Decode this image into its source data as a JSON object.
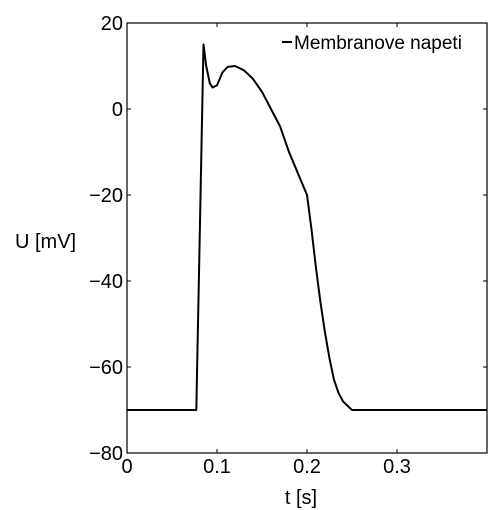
{
  "chart_data": {
    "type": "line",
    "xlabel": "t [s]",
    "ylabel": "U [mV]",
    "xlim": [
      0,
      0.4
    ],
    "ylim": [
      -80,
      20
    ],
    "xticks": [
      0,
      0.1,
      0.2,
      0.3
    ],
    "xtick_labels": [
      "0",
      "0.1",
      "0.2",
      "0.3"
    ],
    "yticks": [
      -80,
      -60,
      -40,
      -20,
      0,
      20
    ],
    "ytick_labels": [
      "−80",
      "−60",
      "−40",
      "−20",
      "0",
      "20"
    ],
    "grid": false,
    "legend": "top-right",
    "colors": {
      "line": "#000000",
      "axes": "#000000"
    },
    "series": [
      {
        "name": "Membranove napeti",
        "x": [
          0,
          0.077,
          0.085,
          0.088,
          0.092,
          0.095,
          0.1,
          0.106,
          0.112,
          0.12,
          0.13,
          0.14,
          0.15,
          0.16,
          0.17,
          0.18,
          0.19,
          0.2,
          0.205,
          0.21,
          0.215,
          0.22,
          0.225,
          0.23,
          0.235,
          0.24,
          0.245,
          0.25,
          0.255,
          0.3,
          0.4
        ],
        "y": [
          -70,
          -70,
          15,
          10,
          6,
          5,
          5.5,
          8.5,
          9.8,
          10,
          9,
          7,
          4,
          0,
          -4,
          -10,
          -15,
          -20,
          -28,
          -37,
          -45,
          -52,
          -58,
          -63,
          -66,
          -68,
          -69,
          -70,
          -70,
          -70,
          -70
        ]
      }
    ]
  }
}
